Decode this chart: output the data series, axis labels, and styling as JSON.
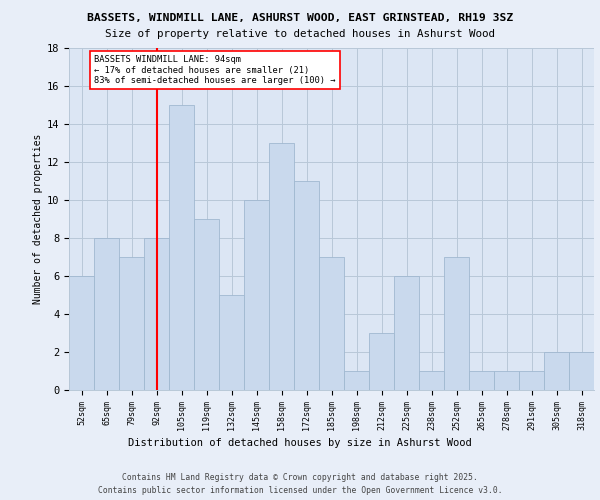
{
  "title": "BASSETS, WINDMILL LANE, ASHURST WOOD, EAST GRINSTEAD, RH19 3SZ",
  "subtitle": "Size of property relative to detached houses in Ashurst Wood",
  "xlabel": "Distribution of detached houses by size in Ashurst Wood",
  "ylabel": "Number of detached properties",
  "categories": [
    "52sqm",
    "65sqm",
    "79sqm",
    "92sqm",
    "105sqm",
    "119sqm",
    "132sqm",
    "145sqm",
    "158sqm",
    "172sqm",
    "185sqm",
    "198sqm",
    "212sqm",
    "225sqm",
    "238sqm",
    "252sqm",
    "265sqm",
    "278sqm",
    "291sqm",
    "305sqm",
    "318sqm"
  ],
  "values": [
    6,
    8,
    7,
    8,
    15,
    9,
    5,
    10,
    13,
    11,
    7,
    1,
    3,
    6,
    1,
    7,
    1,
    1,
    1,
    2,
    2
  ],
  "bar_color": "#c9d9ed",
  "bar_edge_color": "#a0b8d0",
  "red_line_index": 3.5,
  "annotation_text": "BASSETS WINDMILL LANE: 94sqm\n← 17% of detached houses are smaller (21)\n83% of semi-detached houses are larger (100) →",
  "ylim": [
    0,
    18
  ],
  "yticks": [
    0,
    2,
    4,
    6,
    8,
    10,
    12,
    14,
    16,
    18
  ],
  "footer_line1": "Contains HM Land Registry data © Crown copyright and database right 2025.",
  "footer_line2": "Contains public sector information licensed under the Open Government Licence v3.0.",
  "background_color": "#e8eef8",
  "plot_background": "#dce6f4"
}
